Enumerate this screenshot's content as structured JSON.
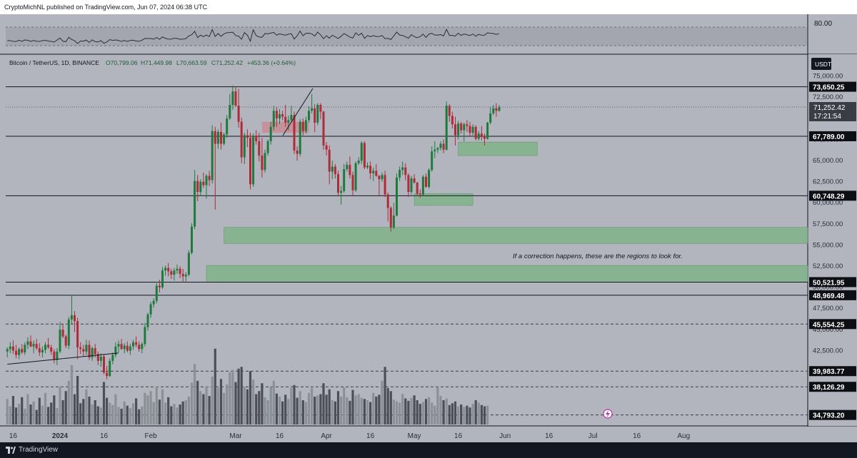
{
  "header": {
    "publisher": "CryptoMichNL published on TradingView.com, Jun 07, 2024 06:38 UTC"
  },
  "footer": {
    "brand": "TradingView"
  },
  "rsi_panel": {
    "level_label": "80.00"
  },
  "symbol_legend": {
    "name": "Bitcoin / TetherUS, 1D, BINANCE",
    "open": "O70,799.06",
    "high": "H71,449.98",
    "low": "L70,663.59",
    "close": "C71,252.42",
    "change": "+453.36 (+0.64%)"
  },
  "currency_button": "USDT",
  "annotation": "If a correction happens, these are the regions to look for.",
  "current_price": {
    "value": "71,252.42",
    "countdown": "17:21:54"
  },
  "colors": {
    "bg": "#b2b5be",
    "up": "#1e7a3c",
    "down": "#b02a37",
    "zone": "#7fb38a"
  },
  "chart_data": {
    "type": "candlestick",
    "ylim": [
      33500,
      77500
    ],
    "y_ticks": [
      "75,000.00",
      "72,500.00",
      "67,500.00",
      "65,000.00",
      "62,500.00",
      "60,000.00",
      "57,500.00",
      "55,000.00",
      "52,500.00",
      "50,000.00",
      "47,500.00",
      "45,000.00",
      "42,500.00"
    ],
    "y_tick_values": [
      75000,
      72500,
      67500,
      65000,
      62500,
      60000,
      57500,
      55000,
      52500,
      50000,
      47500,
      45000,
      42500
    ],
    "x_labels": [
      "16",
      "2024",
      "16",
      "Feb",
      "Mar",
      "16",
      "Apr",
      "16",
      "May",
      "16",
      "Jun",
      "16",
      "Jul",
      "16",
      "Aug"
    ],
    "x_label_days": [
      -16,
      0,
      15,
      31,
      60,
      75,
      91,
      106,
      121,
      136,
      152,
      167,
      182,
      197,
      213
    ],
    "levels": [
      {
        "label": "73,650.25",
        "value": 73650.25,
        "style": "solid"
      },
      {
        "label": "67,789.00",
        "value": 67789.0,
        "style": "solid"
      },
      {
        "label": "60,748.29",
        "value": 60748.29,
        "style": "solid"
      },
      {
        "label": "50,521.95",
        "value": 50521.95,
        "style": "solid"
      },
      {
        "label": "48,969.48",
        "value": 48969.48,
        "style": "solid"
      },
      {
        "label": "45,554.25",
        "value": 45554.25,
        "style": "dashed"
      },
      {
        "label": "39,983.77",
        "value": 39983.77,
        "style": "dashed"
      },
      {
        "label": "38,126.29",
        "value": 38126.29,
        "style": "dashed"
      },
      {
        "label": "34,793.20",
        "value": 34793.2,
        "style": "dashed"
      }
    ],
    "zones": [
      {
        "day_from": 136,
        "day_to": 163,
        "low": 65500,
        "high": 67100
      },
      {
        "day_from": 121,
        "day_to": 141,
        "low": 59600,
        "high": 61000
      },
      {
        "day_from": 56,
        "day_to": 999,
        "low": 55100,
        "high": 57000
      },
      {
        "day_from": 50,
        "day_to": 999,
        "low": 50500,
        "high": 52500
      }
    ],
    "resistance_zone": {
      "day_from": 69,
      "day_to": 85,
      "low": 68200,
      "high": 69500
    },
    "candles": [
      [
        42300,
        42800,
        41600,
        42600
      ],
      [
        42600,
        43400,
        42100,
        42900
      ],
      [
        42900,
        43600,
        42000,
        42400
      ],
      [
        42400,
        43100,
        41500,
        41900
      ],
      [
        41900,
        42800,
        41400,
        42600
      ],
      [
        42600,
        43200,
        42000,
        42200
      ],
      [
        42200,
        43400,
        41900,
        43100
      ],
      [
        43100,
        44000,
        42600,
        43500
      ],
      [
        43500,
        44200,
        42800,
        42900
      ],
      [
        42900,
        43600,
        42100,
        43200
      ],
      [
        43200,
        43800,
        42500,
        42700
      ],
      [
        42700,
        43300,
        41800,
        42200
      ],
      [
        42200,
        42900,
        41600,
        42500
      ],
      [
        42500,
        43400,
        42100,
        43100
      ],
      [
        43100,
        43900,
        42600,
        42800
      ],
      [
        42800,
        43100,
        41900,
        42300
      ],
      [
        42300,
        42600,
        40900,
        41300
      ],
      [
        41300,
        42700,
        40700,
        42300
      ],
      [
        42300,
        45800,
        42100,
        44900
      ],
      [
        44900,
        45500,
        43900,
        44100
      ],
      [
        44100,
        44300,
        42700,
        43000
      ],
      [
        43000,
        46400,
        42600,
        46100
      ],
      [
        46100,
        48900,
        45600,
        46600
      ],
      [
        46600,
        47100,
        44600,
        45900
      ],
      [
        45900,
        46300,
        41400,
        42800
      ],
      [
        42800,
        43400,
        42000,
        42600
      ],
      [
        42600,
        43100,
        41700,
        42300
      ],
      [
        42300,
        43700,
        41900,
        43100
      ],
      [
        43100,
        43600,
        41300,
        41600
      ],
      [
        41600,
        42900,
        41200,
        42700
      ],
      [
        42700,
        43200,
        41600,
        42000
      ],
      [
        42000,
        42300,
        40700,
        41200
      ],
      [
        41200,
        42100,
        40500,
        41700
      ],
      [
        41700,
        42000,
        39600,
        39800
      ],
      [
        39800,
        40600,
        39000,
        39400
      ],
      [
        39400,
        41500,
        39300,
        41200
      ],
      [
        41200,
        42200,
        40800,
        41900
      ],
      [
        41900,
        43400,
        41600,
        42900
      ],
      [
        42900,
        43600,
        42200,
        43200
      ],
      [
        43200,
        43800,
        42500,
        42600
      ],
      [
        42600,
        43300,
        42100,
        43000
      ],
      [
        43000,
        43500,
        42200,
        42400
      ],
      [
        42400,
        43200,
        41900,
        42900
      ],
      [
        42900,
        43700,
        42500,
        43400
      ],
      [
        43400,
        44100,
        42800,
        43100
      ],
      [
        43100,
        43500,
        42300,
        42600
      ],
      [
        42600,
        43400,
        42100,
        43200
      ],
      [
        43200,
        45700,
        42900,
        45200
      ],
      [
        45200,
        46900,
        44800,
        46700
      ],
      [
        46700,
        48200,
        46300,
        47900
      ],
      [
        47900,
        48600,
        47500,
        48300
      ],
      [
        48300,
        50400,
        48000,
        50100
      ],
      [
        50100,
        50800,
        49300,
        49900
      ],
      [
        49900,
        52300,
        49700,
        51900
      ],
      [
        51900,
        52500,
        51300,
        52200
      ],
      [
        52200,
        52800,
        51200,
        51800
      ],
      [
        51800,
        52100,
        50900,
        51400
      ],
      [
        51400,
        52200,
        50700,
        51900
      ],
      [
        51900,
        52600,
        51500,
        52100
      ],
      [
        52100,
        52400,
        51000,
        51500
      ],
      [
        51500,
        52100,
        50500,
        51200
      ],
      [
        51200,
        51700,
        50600,
        51400
      ],
      [
        51400,
        54300,
        51200,
        54000
      ],
      [
        54000,
        57500,
        53800,
        57100
      ],
      [
        57100,
        63800,
        56800,
        62500
      ],
      [
        62500,
        63200,
        60100,
        61200
      ],
      [
        61200,
        62700,
        60700,
        62400
      ],
      [
        62400,
        63500,
        61700,
        62000
      ],
      [
        62000,
        63300,
        60400,
        63100
      ],
      [
        63100,
        63700,
        61900,
        62600
      ],
      [
        62600,
        69100,
        62200,
        68400
      ],
      [
        68400,
        68900,
        59100,
        66900
      ],
      [
        66900,
        68600,
        66300,
        68300
      ],
      [
        68300,
        69400,
        66200,
        66900
      ],
      [
        66900,
        68200,
        66700,
        68000
      ],
      [
        68000,
        70300,
        67600,
        69900
      ],
      [
        69900,
        72800,
        69700,
        71500
      ],
      [
        71500,
        73800,
        70900,
        73100
      ],
      [
        73100,
        73650,
        71300,
        71400
      ],
      [
        71400,
        73400,
        68800,
        69500
      ],
      [
        69500,
        70000,
        64600,
        65300
      ],
      [
        65300,
        68200,
        64500,
        67900
      ],
      [
        67900,
        68600,
        66500,
        67600
      ],
      [
        67600,
        68200,
        61500,
        62100
      ],
      [
        62100,
        68100,
        61800,
        67800
      ],
      [
        67800,
        68500,
        66800,
        67200
      ],
      [
        67200,
        68200,
        64800,
        65500
      ],
      [
        65500,
        67600,
        62900,
        63800
      ],
      [
        63800,
        66200,
        63500,
        65800
      ],
      [
        65800,
        67400,
        65500,
        67200
      ],
      [
        67200,
        69500,
        66800,
        68900
      ],
      [
        68900,
        71400,
        68500,
        70800
      ],
      [
        70800,
        71200,
        68900,
        69900
      ],
      [
        69900,
        71000,
        69200,
        70400
      ],
      [
        70400,
        70800,
        69700,
        70100
      ],
      [
        70100,
        71500,
        68900,
        69400
      ],
      [
        69400,
        70200,
        68500,
        69700
      ],
      [
        69700,
        71400,
        69500,
        70300
      ],
      [
        70300,
        70700,
        65700,
        66100
      ],
      [
        66100,
        66600,
        64900,
        65700
      ],
      [
        65700,
        69800,
        65400,
        69500
      ],
      [
        69500,
        69900,
        67900,
        68400
      ],
      [
        68400,
        70100,
        68100,
        69700
      ],
      [
        69700,
        71300,
        69400,
        70800
      ],
      [
        70800,
        72800,
        70500,
        71100
      ],
      [
        71100,
        71600,
        68300,
        69400
      ],
      [
        69400,
        71700,
        69100,
        71500
      ],
      [
        71500,
        71700,
        69800,
        70700
      ],
      [
        70700,
        70800,
        66200,
        66700
      ],
      [
        66700,
        67100,
        65500,
        66200
      ],
      [
        66200,
        66700,
        62100,
        63600
      ],
      [
        63600,
        64900,
        62700,
        64200
      ],
      [
        64200,
        64500,
        62800,
        63300
      ],
      [
        63300,
        63700,
        60800,
        61100
      ],
      [
        61100,
        61900,
        59700,
        61300
      ],
      [
        61300,
        64500,
        61100,
        63900
      ],
      [
        63900,
        64800,
        63600,
        64400
      ],
      [
        64400,
        65400,
        62800,
        63200
      ],
      [
        63200,
        63600,
        60800,
        61400
      ],
      [
        61400,
        64800,
        61200,
        64600
      ],
      [
        64600,
        65300,
        64400,
        64900
      ],
      [
        64900,
        67200,
        64500,
        67000
      ],
      [
        67000,
        67200,
        63900,
        64100
      ],
      [
        64100,
        64700,
        63900,
        64300
      ],
      [
        64300,
        64800,
        62700,
        63400
      ],
      [
        63400,
        64100,
        62500,
        63700
      ],
      [
        63700,
        64500,
        63000,
        63100
      ],
      [
        63100,
        63200,
        60800,
        62700
      ],
      [
        62700,
        63500,
        62400,
        63200
      ],
      [
        63200,
        63700,
        60600,
        60900
      ],
      [
        60900,
        61100,
        57700,
        59300
      ],
      [
        59300,
        59500,
        56500,
        57000
      ],
      [
        57000,
        59900,
        56800,
        58400
      ],
      [
        58400,
        63400,
        58300,
        62900
      ],
      [
        62900,
        64200,
        62500,
        63800
      ],
      [
        63800,
        64800,
        63200,
        64100
      ],
      [
        64100,
        64600,
        62600,
        63200
      ],
      [
        63200,
        63400,
        60600,
        61200
      ],
      [
        61200,
        63100,
        60900,
        62800
      ],
      [
        62800,
        63300,
        62200,
        62300
      ],
      [
        62300,
        62400,
        60700,
        61000
      ],
      [
        61000,
        61500,
        60500,
        60900
      ],
      [
        60900,
        63200,
        60800,
        63000
      ],
      [
        63000,
        63400,
        61700,
        61800
      ],
      [
        61800,
        64000,
        61600,
        63800
      ],
      [
        63800,
        66600,
        63600,
        66000
      ],
      [
        66000,
        67200,
        65200,
        66200
      ],
      [
        66200,
        66500,
        65800,
        66400
      ],
      [
        66400,
        67200,
        66100,
        66900
      ],
      [
        66900,
        67400,
        65800,
        66200
      ],
      [
        66200,
        71900,
        66100,
        71400
      ],
      [
        71400,
        71600,
        69500,
        70200
      ],
      [
        70200,
        70700,
        68700,
        69200
      ],
      [
        69200,
        70100,
        66700,
        67900
      ],
      [
        67900,
        69600,
        67400,
        69300
      ],
      [
        69300,
        69500,
        68100,
        68500
      ],
      [
        68500,
        69400,
        67200,
        69200
      ],
      [
        69200,
        69700,
        68300,
        69000
      ],
      [
        69000,
        69500,
        67800,
        68200
      ],
      [
        68200,
        69200,
        67900,
        68900
      ],
      [
        68900,
        69100,
        67300,
        67500
      ],
      [
        67500,
        68400,
        67300,
        68100
      ],
      [
        68100,
        69000,
        67300,
        67700
      ],
      [
        67700,
        68100,
        66700,
        67500
      ],
      [
        67500,
        69500,
        67400,
        69400
      ],
      [
        69400,
        71300,
        69200,
        70500
      ],
      [
        70500,
        71500,
        70300,
        71100
      ],
      [
        71100,
        71700,
        70100,
        70800
      ],
      [
        70800,
        71500,
        70700,
        71250
      ]
    ],
    "volume_rel": [
      0.42,
      0.3,
      0.47,
      0.28,
      0.34,
      0.45,
      0.26,
      0.5,
      0.33,
      0.38,
      0.24,
      0.44,
      0.31,
      0.52,
      0.29,
      0.36,
      0.48,
      0.27,
      0.62,
      0.4,
      0.55,
      0.72,
      0.98,
      0.5,
      0.8,
      0.35,
      0.42,
      0.58,
      0.46,
      0.33,
      0.4,
      0.3,
      0.28,
      0.7,
      0.44,
      0.36,
      0.32,
      0.5,
      0.29,
      0.26,
      0.38,
      0.31,
      0.27,
      0.35,
      0.43,
      0.25,
      0.3,
      0.52,
      0.48,
      0.55,
      0.37,
      0.63,
      0.41,
      0.58,
      0.36,
      0.45,
      0.3,
      0.34,
      0.28,
      0.33,
      0.38,
      0.4,
      0.46,
      0.69,
      1.0,
      0.72,
      0.55,
      0.5,
      0.63,
      0.47,
      0.79,
      1.25,
      0.6,
      0.75,
      0.52,
      0.66,
      0.86,
      0.9,
      0.7,
      0.92,
      0.95,
      0.62,
      0.58,
      0.88,
      0.74,
      0.5,
      0.55,
      0.68,
      0.45,
      0.4,
      0.62,
      0.72,
      0.51,
      0.46,
      0.38,
      0.49,
      0.42,
      0.6,
      0.65,
      0.44,
      0.55,
      0.4,
      0.37,
      0.52,
      0.6,
      0.46,
      0.48,
      0.5,
      0.68,
      0.49,
      0.58,
      0.4,
      0.38,
      0.55,
      0.46,
      0.61,
      0.45,
      0.39,
      0.57,
      0.48,
      0.5,
      0.44,
      0.42,
      0.4,
      0.37,
      0.52,
      0.46,
      0.49,
      0.72,
      0.95,
      0.6,
      0.55,
      0.41,
      0.38,
      0.36,
      0.5,
      0.43,
      0.39,
      0.44,
      0.48,
      0.4,
      0.34,
      0.37,
      0.42,
      0.45,
      0.36,
      0.31,
      0.62,
      0.47,
      0.4,
      0.43,
      0.32,
      0.35,
      0.38,
      0.3,
      0.33,
      0.29,
      0.31,
      0.28,
      0.34,
      0.4,
      0.36,
      0.32,
      0.3,
      0.31
    ]
  }
}
